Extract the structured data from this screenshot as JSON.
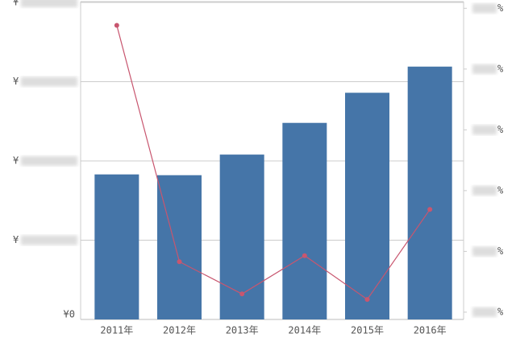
{
  "chart_data": {
    "type": "bar-line",
    "categories": [
      "2011年",
      "2012年",
      "2013年",
      "2014年",
      "2015年",
      "2016年"
    ],
    "series": [
      {
        "type": "bar",
        "color": "#4575a8",
        "values": [
          1.83,
          1.82,
          2.08,
          2.48,
          2.86,
          3.19
        ]
      },
      {
        "type": "line",
        "axis": "y2",
        "color": "#c8566f",
        "values": [
          4.72,
          0.83,
          0.3,
          0.93,
          0.21,
          1.69
        ]
      }
    ],
    "ylim": [
      0,
      4.01
    ],
    "yticks": [
      {
        "value": 0,
        "label": "¥0"
      },
      {
        "value": 1,
        "label": "¥"
      },
      {
        "value": 2,
        "label": "¥"
      },
      {
        "value": 3,
        "label": "¥"
      },
      {
        "value": 4,
        "label": "¥"
      }
    ],
    "y2lim": [
      -0.12,
      5.11
    ],
    "y2ticks": [
      {
        "value": 0,
        "label": "%"
      },
      {
        "value": 1,
        "label": "%"
      },
      {
        "value": 2,
        "label": "%"
      },
      {
        "value": 3,
        "label": "%"
      },
      {
        "value": 4,
        "label": "%"
      },
      {
        "value": 5,
        "label": "%"
      }
    ],
    "grid": true
  }
}
